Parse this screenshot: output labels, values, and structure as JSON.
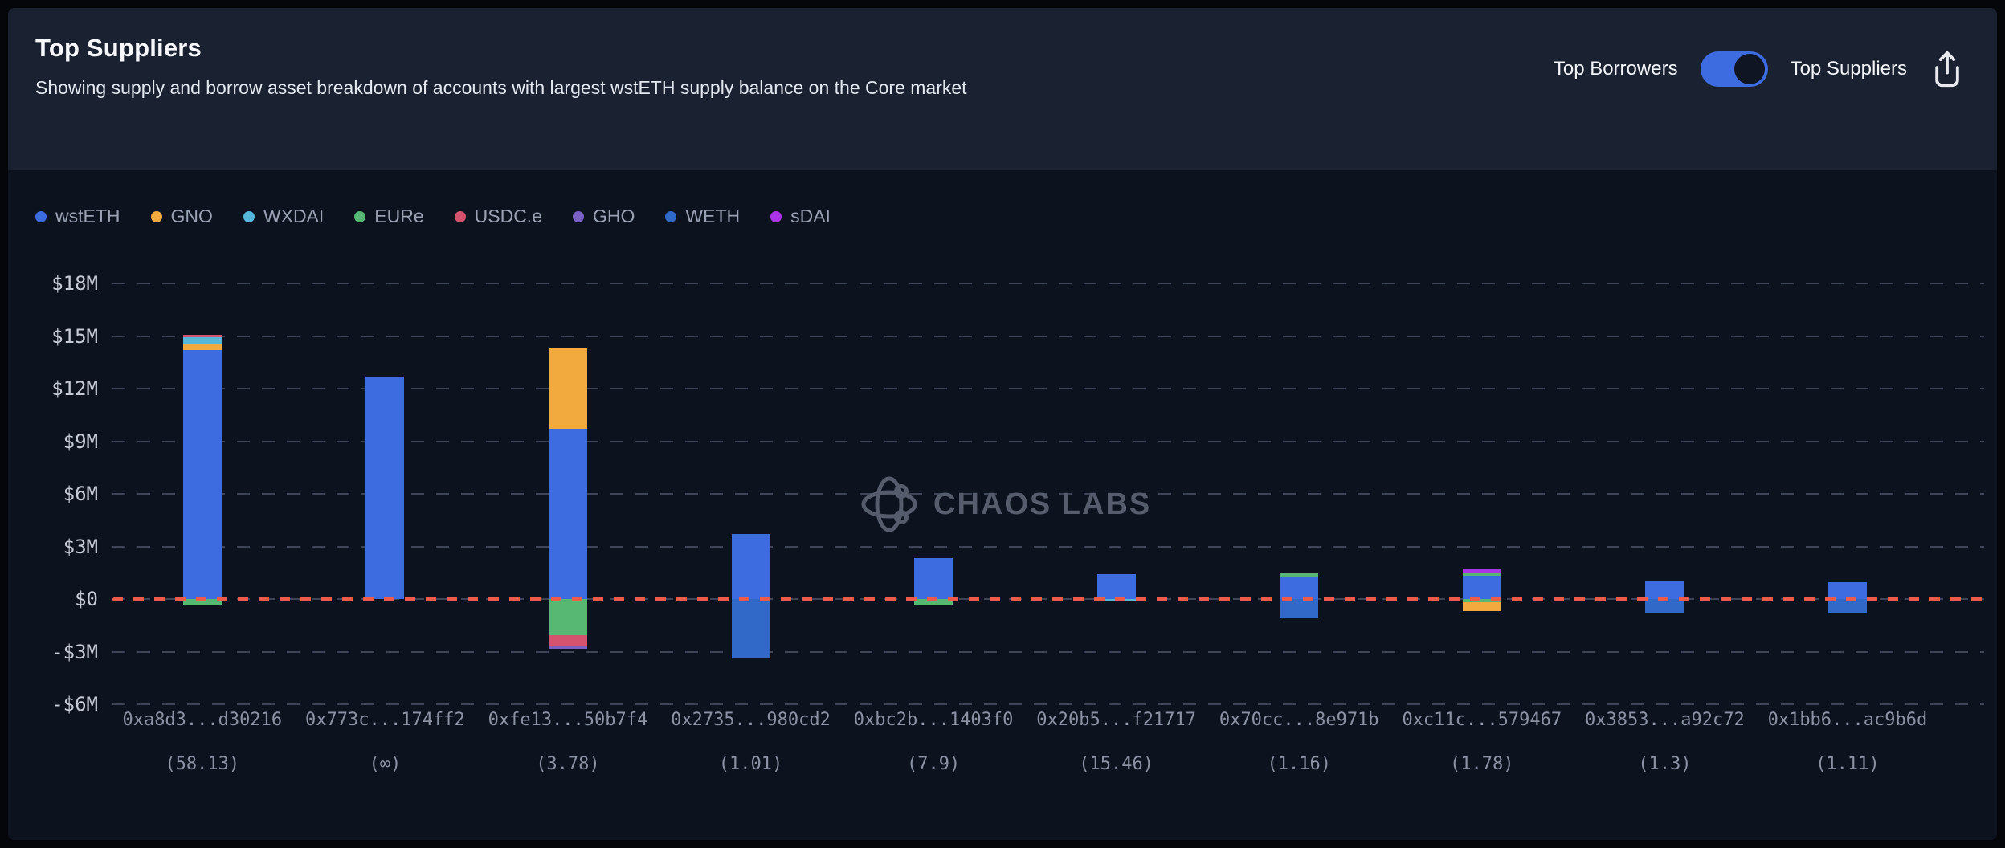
{
  "header": {
    "title": "Top Suppliers",
    "subtitle": "Showing supply and borrow asset breakdown of accounts with largest wstETH supply balance on the Core market",
    "toggle": {
      "left_label": "Top Borrowers",
      "right_label": "Top Suppliers",
      "state": "right",
      "active_color": "#3d6be0"
    }
  },
  "watermark": {
    "text": "CHAOS LABS"
  },
  "chart_data": {
    "type": "bar",
    "stacked": true,
    "unit": "USD (millions)",
    "grid": true,
    "legend_position": "top-left",
    "zero_line_color": "#ef5a49",
    "ytick_values": [
      18,
      15,
      12,
      9,
      6,
      3,
      0,
      -3,
      -6
    ],
    "ytick_labels": [
      "$18M",
      "$15M",
      "$12M",
      "$9M",
      "$6M",
      "$3M",
      "$0",
      "-$3M",
      "-$6M"
    ],
    "ylim": [
      -6,
      18
    ],
    "assets": [
      {
        "name": "wstETH",
        "color": "#3d6be0"
      },
      {
        "name": "GNO",
        "color": "#f2a93e"
      },
      {
        "name": "WXDAI",
        "color": "#55b7d9"
      },
      {
        "name": "EURe",
        "color": "#57b873"
      },
      {
        "name": "USDC.e",
        "color": "#d5536e"
      },
      {
        "name": "GHO",
        "color": "#7b61c4"
      },
      {
        "name": "WETH",
        "color": "#3069c8"
      },
      {
        "name": "sDAI",
        "color": "#ab33e8"
      }
    ],
    "accounts": [
      {
        "label": "0xa8d3...d30216",
        "health": "(58.13)",
        "supply": [
          [
            "wstETH",
            14.2
          ],
          [
            "GNO",
            0.35
          ],
          [
            "WXDAI",
            0.4
          ],
          [
            "USDC.e",
            0.12
          ]
        ],
        "borrow": [
          [
            "EURe",
            0.32
          ]
        ]
      },
      {
        "label": "0x773c...174ff2",
        "health": "(∞)",
        "supply": [
          [
            "wstETH",
            12.7
          ]
        ],
        "borrow": []
      },
      {
        "label": "0xfe13...50b7f4",
        "health": "(3.78)",
        "supply": [
          [
            "wstETH",
            9.7
          ],
          [
            "GNO",
            4.65
          ]
        ],
        "borrow": [
          [
            "EURe",
            2.05
          ],
          [
            "USDC.e",
            0.6
          ],
          [
            "GHO",
            0.2
          ]
        ]
      },
      {
        "label": "0x2735...980cd2",
        "health": "(1.01)",
        "supply": [
          [
            "wstETH",
            3.7
          ]
        ],
        "borrow": [
          [
            "WETH",
            3.4
          ]
        ]
      },
      {
        "label": "0xbc2b...1403f0",
        "health": "(7.9)",
        "supply": [
          [
            "wstETH",
            2.35
          ]
        ],
        "borrow": [
          [
            "EURe",
            0.3
          ]
        ]
      },
      {
        "label": "0x20b5...f21717",
        "health": "(15.46)",
        "supply": [
          [
            "wstETH",
            1.4
          ]
        ],
        "borrow": [
          [
            "WXDAI",
            0.12
          ]
        ]
      },
      {
        "label": "0x70cc...8e971b",
        "health": "(1.16)",
        "supply": [
          [
            "wstETH",
            1.3
          ],
          [
            "EURe",
            0.2
          ]
        ],
        "borrow": [
          [
            "WETH",
            1.05
          ]
        ]
      },
      {
        "label": "0xc11c...579467",
        "health": "(1.78)",
        "supply": [
          [
            "wstETH",
            1.33
          ],
          [
            "EURe",
            0.2
          ],
          [
            "sDAI",
            0.22
          ]
        ],
        "borrow": [
          [
            "EURe",
            0.18
          ],
          [
            "GNO",
            0.5
          ]
        ]
      },
      {
        "label": "0x3853...a92c72",
        "health": "(1.3)",
        "supply": [
          [
            "wstETH",
            1.05
          ]
        ],
        "borrow": [
          [
            "WETH",
            0.78
          ]
        ]
      },
      {
        "label": "0x1bb6...ac9b6d",
        "health": "(1.11)",
        "supply": [
          [
            "wstETH",
            0.97
          ]
        ],
        "borrow": [
          [
            "WETH",
            0.78
          ]
        ]
      }
    ]
  }
}
